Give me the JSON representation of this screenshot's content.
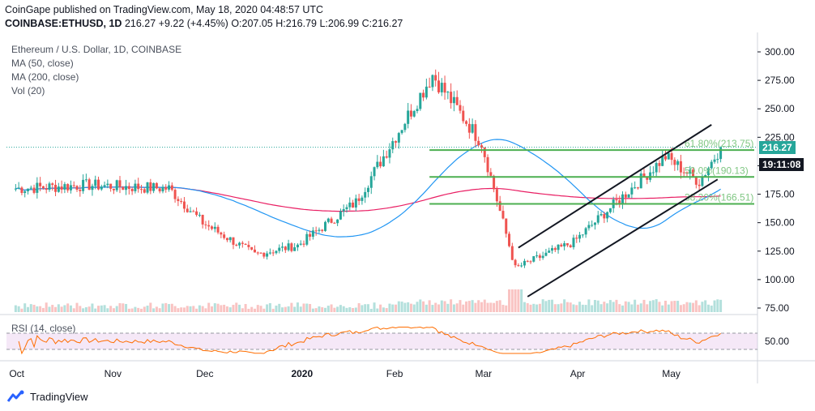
{
  "header": {
    "publisher": "CoinGape published on TradingView.com, May 18, 2020 04:48:57 UTC",
    "symbol": "COINBASE:ETHUSD, 1D",
    "last": "216.27",
    "change": "+9.22 (+4.45%)",
    "open": "O:207.05",
    "high": "H:216.79",
    "low": "L:206.99",
    "close": "C:216.27"
  },
  "legend": {
    "title": "Ethereum / U.S. Dollar, 1D, COINBASE",
    "ma50": "MA (50, close)",
    "ma200": "MA (200, close)",
    "vol": "Vol (20)",
    "rsi": "RSI (14, close)"
  },
  "price_tags": {
    "last_price": "216.27",
    "countdown": "19:11:08"
  },
  "footer": {
    "brand": "TradingView"
  },
  "colors": {
    "up": "#26a69a",
    "down": "#ef5350",
    "ma50": "#2196f3",
    "ma200": "#e91e63",
    "fib": "#4caf50",
    "channel": "#131722",
    "rsi": "#ff6d00",
    "rsi_band": "#e1bee7"
  },
  "chart_data": [
    {
      "type": "candlestick",
      "title": "Ethereum / U.S. Dollar, 1D, COINBASE",
      "y_ticks": [
        75,
        100,
        125,
        150,
        175,
        200,
        225,
        250,
        275,
        300
      ],
      "ylim": [
        70,
        307
      ],
      "x_ticks": [
        "Oct",
        "Nov",
        "Dec",
        "2020",
        "Feb",
        "Mar",
        "Apr",
        "May"
      ],
      "last_price": 216.27,
      "key_points": [
        {
          "date": "2019-10-01",
          "close": 180
        },
        {
          "date": "2019-10-25",
          "close": 183
        },
        {
          "date": "2019-11-20",
          "close": 180
        },
        {
          "date": "2019-12-01",
          "close": 150
        },
        {
          "date": "2019-12-18",
          "close": 122
        },
        {
          "date": "2020-01-01",
          "close": 130
        },
        {
          "date": "2020-01-20",
          "close": 168
        },
        {
          "date": "2020-02-14",
          "close": 280
        },
        {
          "date": "2020-03-01",
          "close": 220
        },
        {
          "date": "2020-03-12",
          "close": 110
        },
        {
          "date": "2020-03-31",
          "close": 133
        },
        {
          "date": "2020-04-30",
          "close": 208
        },
        {
          "date": "2020-05-11",
          "close": 186
        },
        {
          "date": "2020-05-18",
          "close": 216.27
        }
      ],
      "fibonacci": [
        {
          "label": "61.80%(213.75)",
          "value": 213.75
        },
        {
          "label": "50.0%(190.13)",
          "value": 190.13
        },
        {
          "label": "38.20%(166.51)",
          "value": 166.51
        }
      ],
      "indicators": [
        "MA (50, close)",
        "MA (200, close)",
        "Vol (20)"
      ]
    },
    {
      "type": "line",
      "title": "RSI (14, close)",
      "y_ticks": [
        50
      ],
      "band": [
        30,
        70
      ],
      "last_value": 59
    }
  ]
}
